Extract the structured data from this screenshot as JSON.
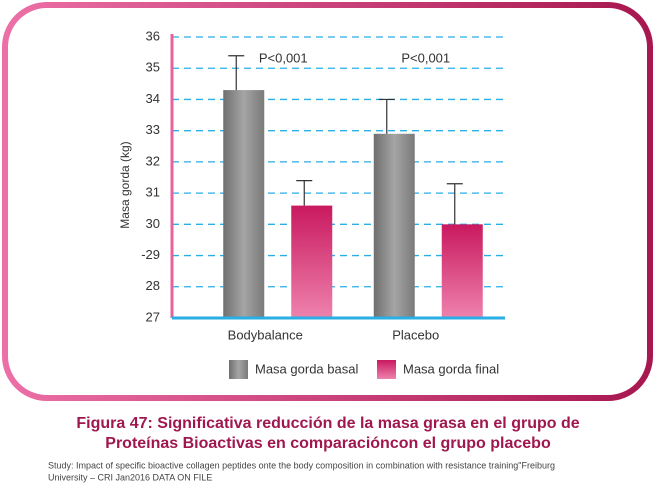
{
  "chart_data": {
    "type": "bar",
    "y_label": "Masa gorda (kg)",
    "categories": [
      "Bodybalance",
      "Placebo"
    ],
    "series": [
      {
        "name": "Masa gorda basal",
        "color": "#8c8c8c",
        "values": [
          34.3,
          32.9
        ],
        "errors": [
          1.1,
          1.1
        ]
      },
      {
        "name": "Masa gorda final",
        "color": "#e2508a",
        "values": [
          30.6,
          30.0
        ],
        "errors": [
          0.8,
          1.3
        ]
      }
    ],
    "annotations": [
      "P<0,001",
      "P<0,001"
    ],
    "ylim": [
      27,
      36
    ],
    "yticks": [
      27,
      28,
      {
        "value": 29,
        "label": "-29"
      },
      30,
      31,
      32,
      33,
      34,
      35,
      36
    ],
    "grid": true,
    "caption": [
      "Figura 47: Significativa reducción de la masa grasa en el grupo de",
      "Proteínas Bioactivas en comparacióncon el grupo placebo"
    ],
    "footnote": [
      "Study: Impact of specific bioactive collagen peptides onte the body composition in combination with resistance training\"Freiburg",
      "University – CRI Jan2016 DATA ON FILE"
    ]
  }
}
